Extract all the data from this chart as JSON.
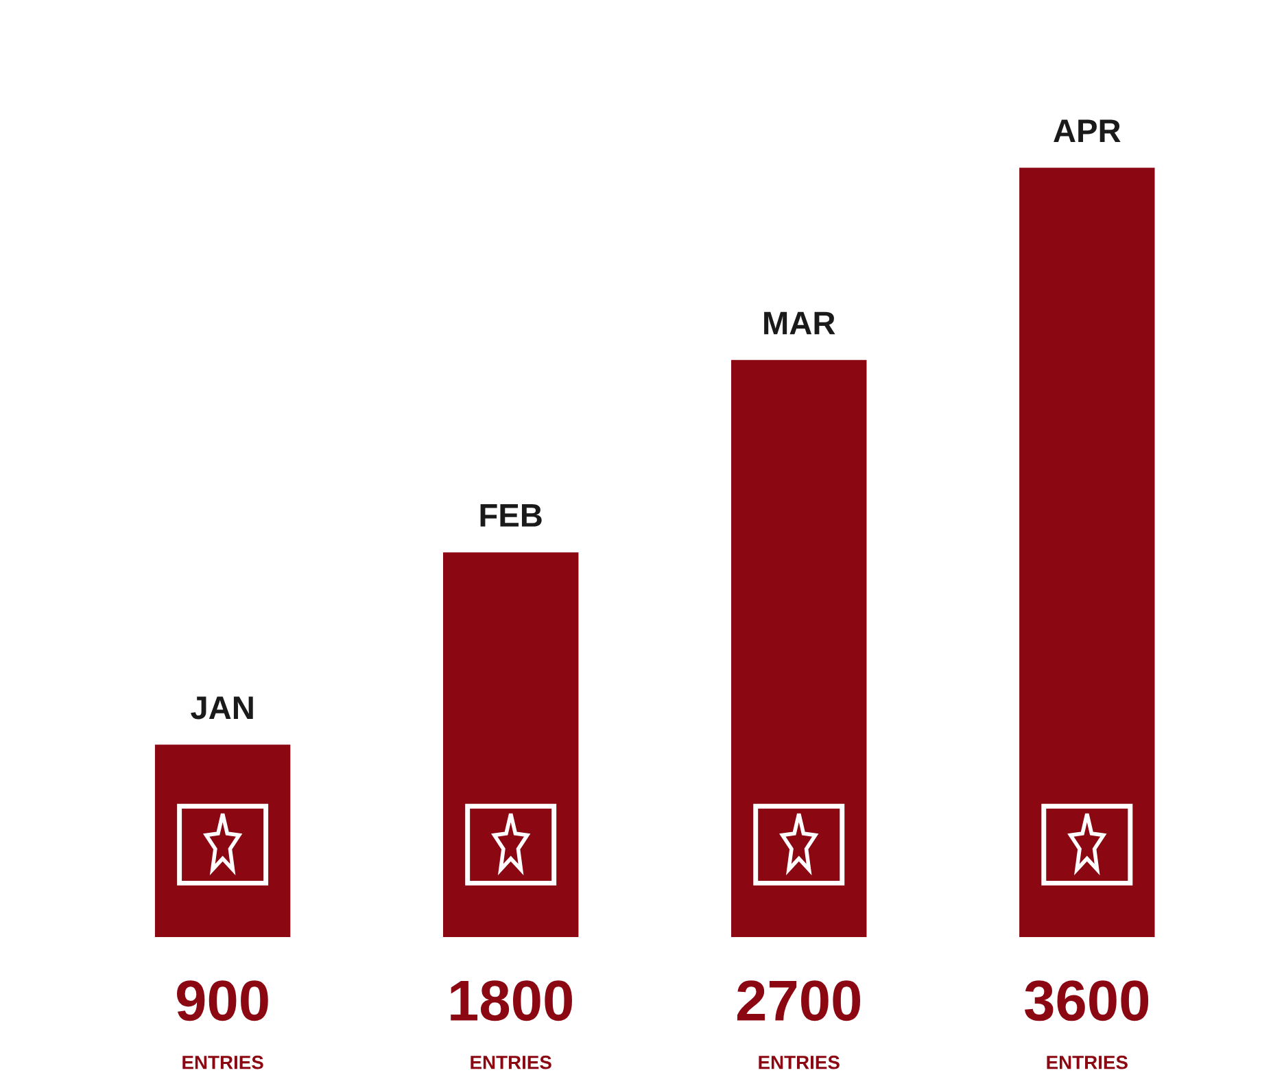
{
  "chart_data": {
    "type": "bar",
    "categories": [
      "JAN",
      "FEB",
      "MAR",
      "APR"
    ],
    "values": [
      900,
      1800,
      2700,
      3600
    ],
    "color": "#8b0712",
    "data_labels": true,
    "annotations": [
      "ENTRIES",
      "ENTRIES",
      "ENTRIES",
      "ENTRIES"
    ]
  }
}
